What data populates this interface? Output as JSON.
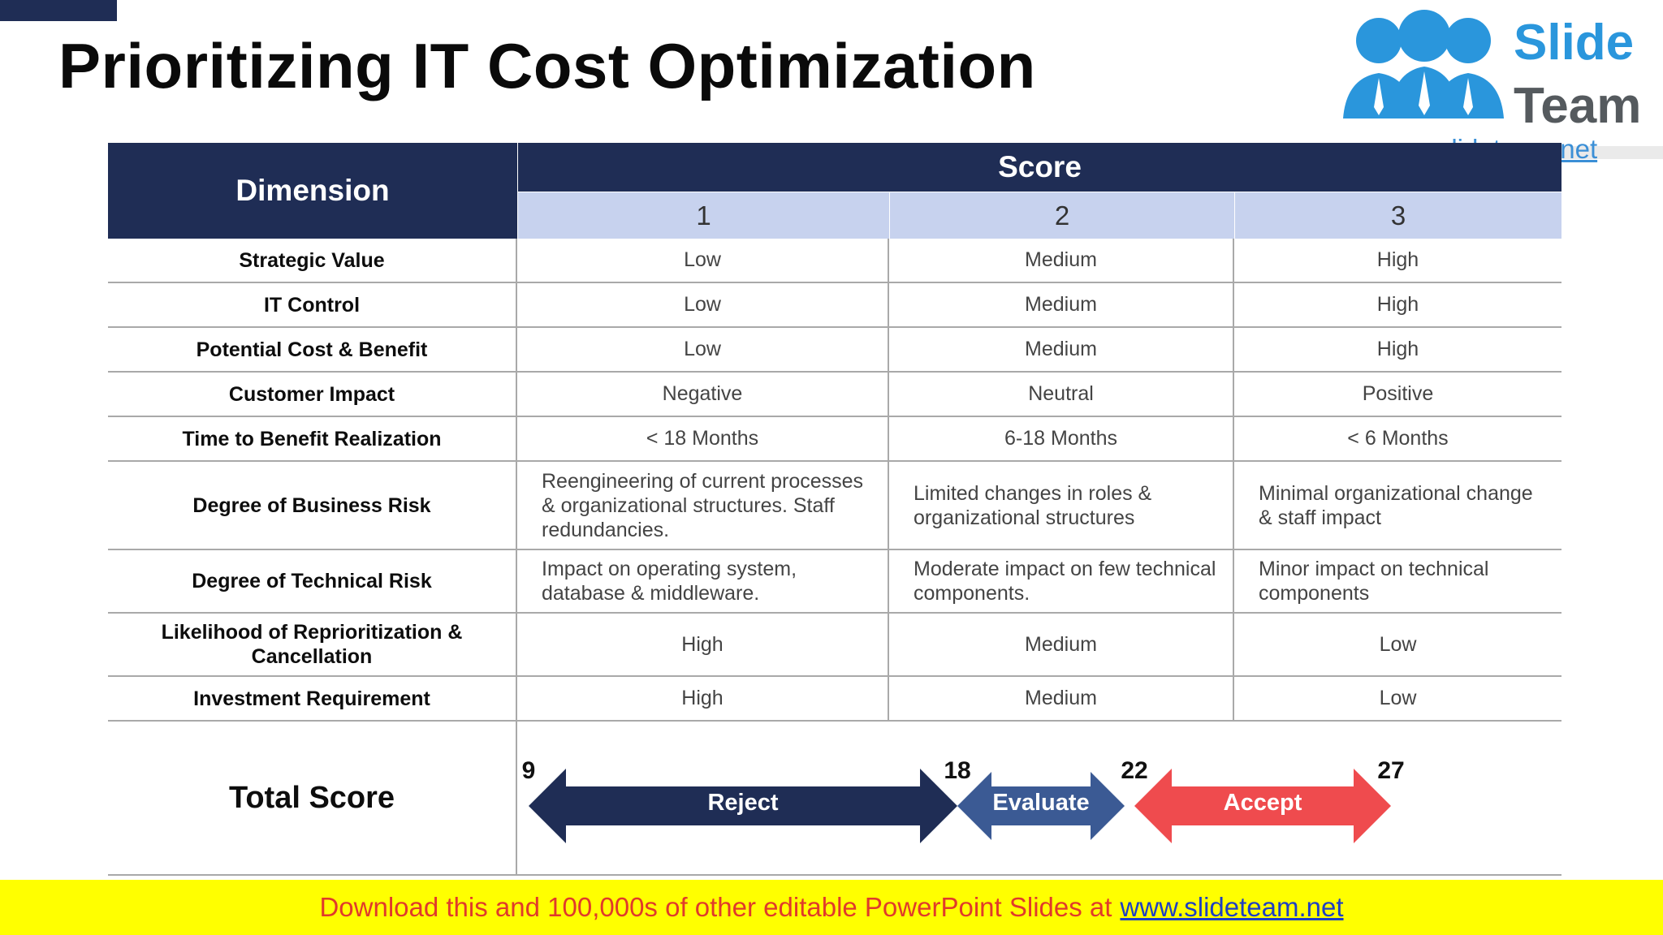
{
  "slide": {
    "title": "Prioritizing IT Cost Optimization"
  },
  "logo": {
    "word1": "Slide",
    "word2": "Team",
    "url": "www.slideteam.net"
  },
  "table": {
    "header": {
      "dimension": "Dimension",
      "score": "Score",
      "score_levels": [
        "1",
        "2",
        "3"
      ]
    },
    "rows": [
      {
        "dimension": "Strategic Value",
        "s1": "Low",
        "s2": "Medium",
        "s3": "High"
      },
      {
        "dimension": "IT Control",
        "s1": "Low",
        "s2": "Medium",
        "s3": "High"
      },
      {
        "dimension": "Potential Cost & Benefit",
        "s1": "Low",
        "s2": "Medium",
        "s3": "High"
      },
      {
        "dimension": "Customer Impact",
        "s1": "Negative",
        "s2": "Neutral",
        "s3": "Positive"
      },
      {
        "dimension": "Time to Benefit Realization",
        "s1": "< 18 Months",
        "s2": "6-18 Months",
        "s3": "< 6 Months"
      },
      {
        "dimension": "Degree of Business Risk",
        "s1": "Reengineering of current processes & organizational structures. Staff redundancies.",
        "s2": "Limited changes in roles & organizational structures",
        "s3": "Minimal organizational change & staff impact"
      },
      {
        "dimension": "Degree of Technical Risk",
        "s1": "Impact on operating system, database & middleware.",
        "s2": "Moderate impact on few technical components.",
        "s3": "Minor impact on technical components"
      },
      {
        "dimension": "Likelihood of Reprioritization & Cancellation",
        "s1": "High",
        "s2": "Medium",
        "s3": "Low"
      },
      {
        "dimension": "Investment Requirement",
        "s1": "High",
        "s2": "Medium",
        "s3": "Low"
      }
    ],
    "total": {
      "label": "Total Score",
      "ticks": [
        "9",
        "18",
        "22",
        "27"
      ],
      "ranges": [
        {
          "label": "Reject",
          "color": "#1f2d55"
        },
        {
          "label": "Evaluate",
          "color": "#3b5a94"
        },
        {
          "label": "Accept",
          "color": "#ef4b4e"
        }
      ]
    }
  },
  "footer": {
    "text": "Download this and 100,000s of other editable PowerPoint Slides at",
    "link": "www.slideteam.net"
  }
}
